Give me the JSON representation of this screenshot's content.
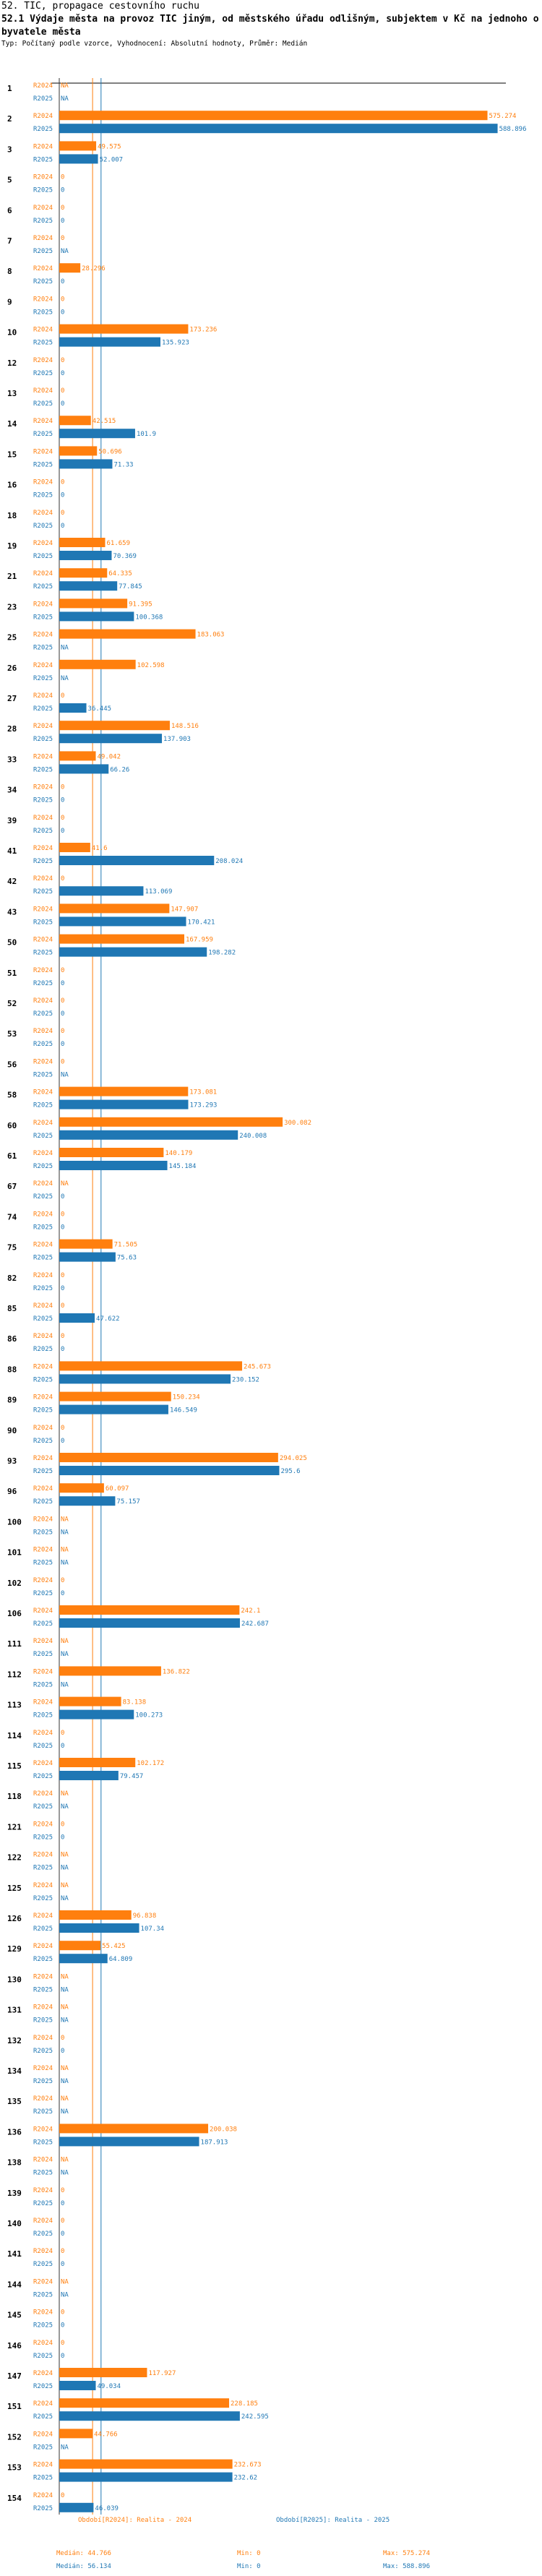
{
  "header": {
    "title": "52. TIC, propagace cestovního ruchu",
    "subtitle": "52.1 Výdaje města na provoz TIC jiným, od městského úřadu odlišným, subjektem v Kč na jednoho obyvatele města",
    "meta": "Typ: Počítaný podle vzorce, Vyhodnocení: Absolutní hodnoty, Průměr: Medián"
  },
  "chart_data": {
    "type": "bar",
    "orientation": "horizontal",
    "xlim": [
      0,
      600
    ],
    "series": [
      {
        "name": "R2024",
        "color": "#ff7f0e"
      },
      {
        "name": "R2025",
        "color": "#1f77b4"
      }
    ],
    "rows": [
      {
        "id": "1",
        "r2024": null,
        "r2025": null
      },
      {
        "id": "2",
        "r2024": 575.274,
        "r2025": 588.896
      },
      {
        "id": "3",
        "r2024": 49.575,
        "r2025": 52.007
      },
      {
        "id": "5",
        "r2024": 0,
        "r2025": 0
      },
      {
        "id": "6",
        "r2024": 0,
        "r2025": 0
      },
      {
        "id": "7",
        "r2024": 0,
        "r2025": null
      },
      {
        "id": "8",
        "r2024": 28.296,
        "r2025": 0
      },
      {
        "id": "9",
        "r2024": 0,
        "r2025": 0
      },
      {
        "id": "10",
        "r2024": 173.236,
        "r2025": 135.923
      },
      {
        "id": "12",
        "r2024": 0,
        "r2025": 0
      },
      {
        "id": "13",
        "r2024": 0,
        "r2025": 0
      },
      {
        "id": "14",
        "r2024": 42.515,
        "r2025": 101.9
      },
      {
        "id": "15",
        "r2024": 50.696,
        "r2025": 71.33
      },
      {
        "id": "16",
        "r2024": 0,
        "r2025": 0
      },
      {
        "id": "18",
        "r2024": 0,
        "r2025": 0
      },
      {
        "id": "19",
        "r2024": 61.659,
        "r2025": 70.369
      },
      {
        "id": "21",
        "r2024": 64.335,
        "r2025": 77.845
      },
      {
        "id": "23",
        "r2024": 91.395,
        "r2025": 100.368
      },
      {
        "id": "25",
        "r2024": 183.063,
        "r2025": null
      },
      {
        "id": "26",
        "r2024": 102.598,
        "r2025": null
      },
      {
        "id": "27",
        "r2024": 0,
        "r2025": 36.445
      },
      {
        "id": "28",
        "r2024": 148.516,
        "r2025": 137.903
      },
      {
        "id": "33",
        "r2024": 49.042,
        "r2025": 66.26
      },
      {
        "id": "34",
        "r2024": 0,
        "r2025": 0
      },
      {
        "id": "39",
        "r2024": 0,
        "r2025": 0
      },
      {
        "id": "41",
        "r2024": 41.6,
        "r2025": 208.024
      },
      {
        "id": "42",
        "r2024": 0,
        "r2025": 113.069
      },
      {
        "id": "43",
        "r2024": 147.907,
        "r2025": 170.421
      },
      {
        "id": "50",
        "r2024": 167.959,
        "r2025": 198.282
      },
      {
        "id": "51",
        "r2024": 0,
        "r2025": 0
      },
      {
        "id": "52",
        "r2024": 0,
        "r2025": 0
      },
      {
        "id": "53",
        "r2024": 0,
        "r2025": 0
      },
      {
        "id": "56",
        "r2024": 0,
        "r2025": null
      },
      {
        "id": "58",
        "r2024": 173.081,
        "r2025": 173.293
      },
      {
        "id": "60",
        "r2024": 300.082,
        "r2025": 240.008
      },
      {
        "id": "61",
        "r2024": 140.179,
        "r2025": 145.184
      },
      {
        "id": "67",
        "r2024": null,
        "r2025": 0
      },
      {
        "id": "74",
        "r2024": 0,
        "r2025": 0
      },
      {
        "id": "75",
        "r2024": 71.505,
        "r2025": 75.63
      },
      {
        "id": "82",
        "r2024": 0,
        "r2025": 0
      },
      {
        "id": "85",
        "r2024": 0,
        "r2025": 47.622
      },
      {
        "id": "86",
        "r2024": 0,
        "r2025": 0
      },
      {
        "id": "88",
        "r2024": 245.673,
        "r2025": 230.152
      },
      {
        "id": "89",
        "r2024": 150.234,
        "r2025": 146.549
      },
      {
        "id": "90",
        "r2024": 0,
        "r2025": 0
      },
      {
        "id": "93",
        "r2024": 294.025,
        "r2025": 295.6
      },
      {
        "id": "96",
        "r2024": 60.097,
        "r2025": 75.157
      },
      {
        "id": "100",
        "r2024": null,
        "r2025": null
      },
      {
        "id": "101",
        "r2024": null,
        "r2025": null
      },
      {
        "id": "102",
        "r2024": 0,
        "r2025": 0
      },
      {
        "id": "106",
        "r2024": 242.1,
        "r2025": 242.687
      },
      {
        "id": "111",
        "r2024": null,
        "r2025": null
      },
      {
        "id": "112",
        "r2024": 136.822,
        "r2025": null
      },
      {
        "id": "113",
        "r2024": 83.138,
        "r2025": 100.273
      },
      {
        "id": "114",
        "r2024": 0,
        "r2025": 0
      },
      {
        "id": "115",
        "r2024": 102.172,
        "r2025": 79.457
      },
      {
        "id": "118",
        "r2024": null,
        "r2025": null
      },
      {
        "id": "121",
        "r2024": 0,
        "r2025": 0
      },
      {
        "id": "122",
        "r2024": null,
        "r2025": null
      },
      {
        "id": "125",
        "r2024": null,
        "r2025": null
      },
      {
        "id": "126",
        "r2024": 96.838,
        "r2025": 107.34
      },
      {
        "id": "129",
        "r2024": 55.425,
        "r2025": 64.809
      },
      {
        "id": "130",
        "r2024": null,
        "r2025": null
      },
      {
        "id": "131",
        "r2024": null,
        "r2025": null
      },
      {
        "id": "132",
        "r2024": 0,
        "r2025": 0
      },
      {
        "id": "134",
        "r2024": null,
        "r2025": null
      },
      {
        "id": "135",
        "r2024": null,
        "r2025": null
      },
      {
        "id": "136",
        "r2024": 200.038,
        "r2025": 187.913
      },
      {
        "id": "138",
        "r2024": null,
        "r2025": null
      },
      {
        "id": "139",
        "r2024": 0,
        "r2025": 0
      },
      {
        "id": "140",
        "r2024": 0,
        "r2025": 0
      },
      {
        "id": "141",
        "r2024": 0,
        "r2025": 0
      },
      {
        "id": "144",
        "r2024": null,
        "r2025": null
      },
      {
        "id": "145",
        "r2024": 0,
        "r2025": 0
      },
      {
        "id": "146",
        "r2024": 0,
        "r2025": 0
      },
      {
        "id": "147",
        "r2024": 117.927,
        "r2025": 49.034
      },
      {
        "id": "151",
        "r2024": 228.185,
        "r2025": 242.595
      },
      {
        "id": "152",
        "r2024": 44.766,
        "r2025": null
      },
      {
        "id": "153",
        "r2024": 232.673,
        "r2025": 232.62
      },
      {
        "id": "154",
        "r2024": 0,
        "r2025": 46.039
      }
    ],
    "reference_lines": {
      "median_2024": 44.766,
      "median_2025": 56.134
    }
  },
  "legend": {
    "s2024": {
      "label": "Období[R2024]: Realita - 2024",
      "median": "Medián: 44.766",
      "min": "Min: 0",
      "max": "Max: 575.274"
    },
    "s2025": {
      "label": "Období[R2025]: Realita - 2025",
      "median": "Medián: 56.134",
      "min": "Min: 0",
      "max": "Max: 588.896"
    }
  },
  "na_label": "NA",
  "colors": {
    "orange": "#ff7f0e",
    "blue": "#1f77b4",
    "axis": "#000000"
  }
}
